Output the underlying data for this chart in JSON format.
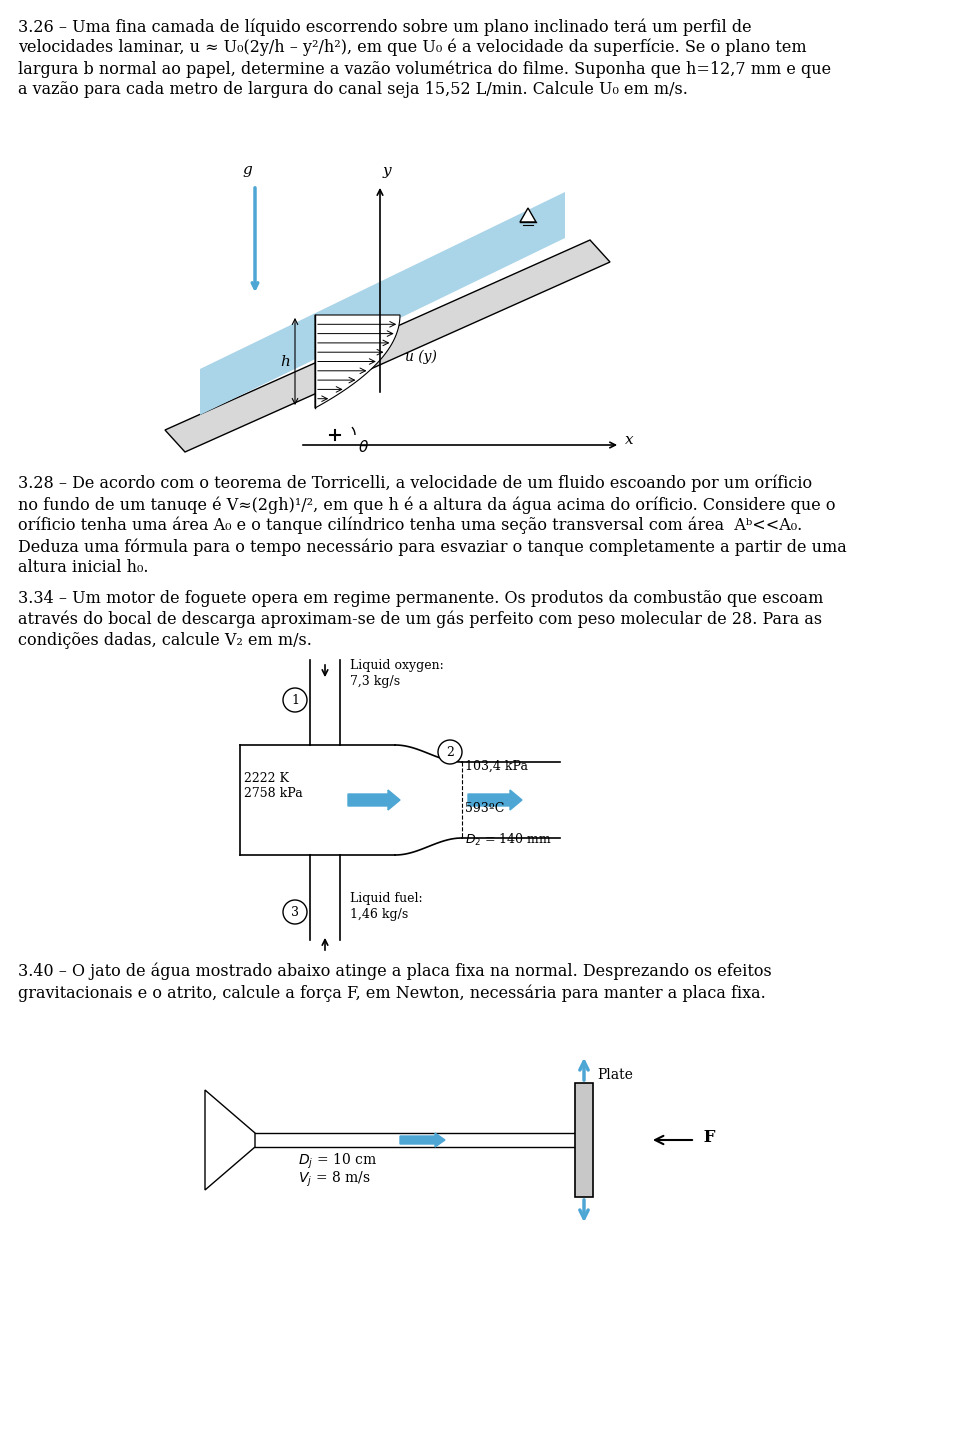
{
  "bg_color": "#ffffff",
  "text_color": "#000000",
  "fig_width": 9.6,
  "fig_height": 14.3,
  "problems": [
    {
      "number": "3.26",
      "text_lines": [
        "3.26 – Uma fina camada de líquido escorrendo sobre um plano inclinado terá um perfil de",
        "velocidades laminar, u ≈ U₀(2y/h – y²/h²), em que U₀ é a velocidade da superfície. Se o plano tem",
        "largura b normal ao papel, determine a vazão volumétrica do filme. Suponha que h=12,7 mm e que",
        "a vazão para cada metro de largura do canal seja 15,52 L/min. Calcule U₀ em m/s."
      ]
    },
    {
      "number": "3.28",
      "text_lines": [
        "3.28 – De acordo com o teorema de Torricelli, a velocidade de um fluido escoando por um oríficio",
        "no fundo de um tanuqe é V≈(2gh)¹/², em que h é a altura da água acima do oríficio. Considere que o",
        "oríficio tenha uma área A₀ e o tanque cilíndrico tenha uma seção transversal com área  Aᵇ<<A₀.",
        "Deduza uma fórmula para o tempo necessário para esvaziar o tanque completamente a partir de uma",
        "altura inicial h₀."
      ]
    },
    {
      "number": "3.34",
      "text_lines": [
        "3.34 – Um motor de foguete opera em regime permanente. Os produtos da combustão que escoam",
        "através do bocal de descarga aproximam-se de um gás perfeito com peso molecular de 28. Para as",
        "condições dadas, calcule V₂ em m/s."
      ]
    },
    {
      "number": "3.40",
      "text_lines": [
        "3.40 – O jato de água mostrado abaixo atinge a placa fixa na normal. Desprezando os efeitos",
        "gravitacionais e o atrito, calcule a força F, em Newton, necessária para manter a placa fixa."
      ]
    }
  ],
  "blue_color": "#4da6d4",
  "light_blue": "#aad4e8"
}
